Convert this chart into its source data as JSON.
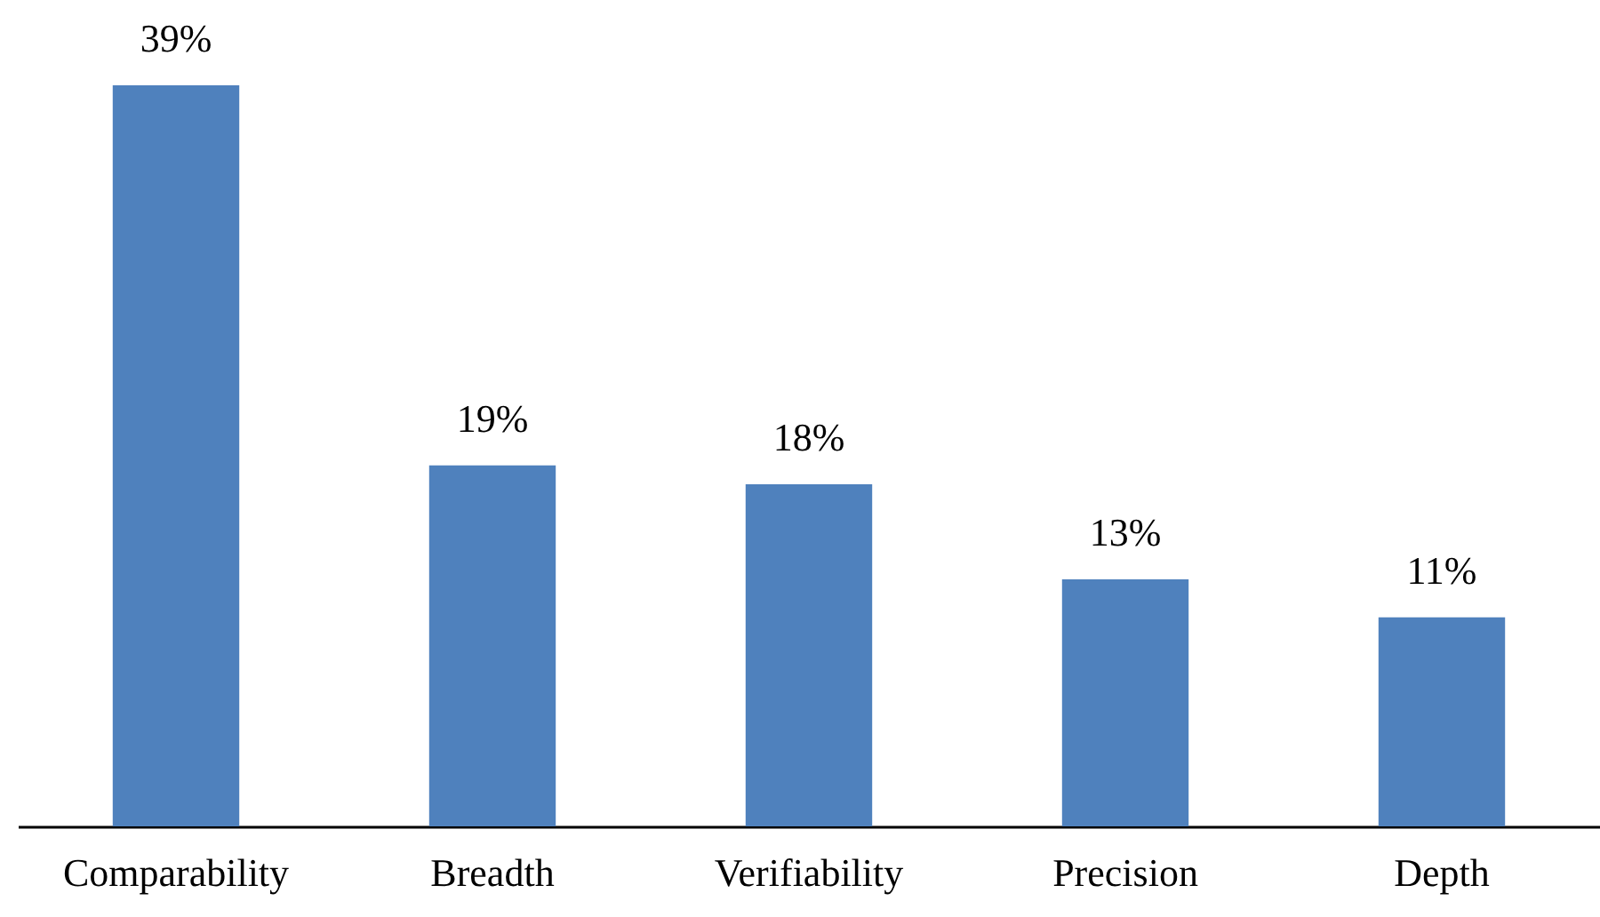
{
  "chart_data": {
    "type": "bar",
    "categories": [
      "Comparability",
      "Breadth",
      "Verifiability",
      "Precision",
      "Depth"
    ],
    "values": [
      39,
      19,
      18,
      13,
      11
    ],
    "value_labels": [
      "39%",
      "19%",
      "18%",
      "13%",
      "11%"
    ],
    "color": "#4f81bd",
    "grid": false
  }
}
